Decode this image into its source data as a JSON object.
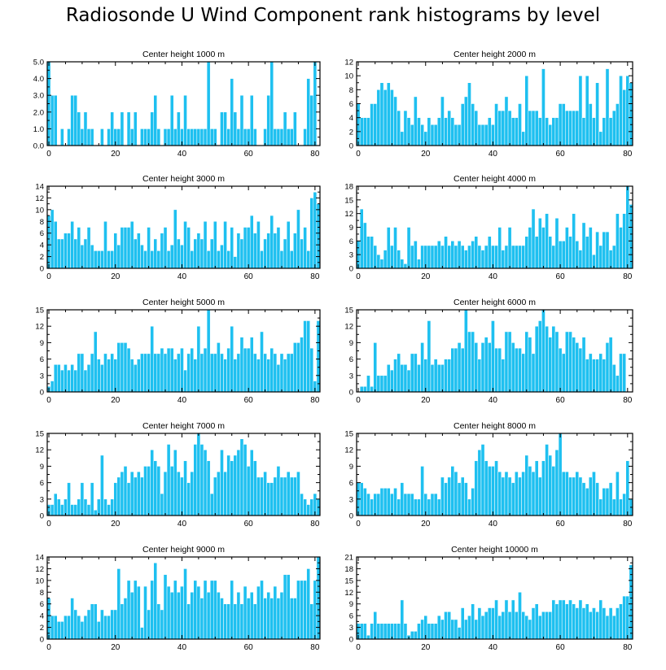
{
  "title": "Radiosonde U Wind Component rank histograms by level",
  "colors": {
    "bar": "#1ec0f0",
    "bar_edge": "#ffffff",
    "axis": "#000000"
  },
  "chart_data": [
    {
      "type": "bar",
      "title": "Center height 1000 m",
      "xlim": [
        -0.5,
        81.5
      ],
      "ylim": [
        0,
        5
      ],
      "xticks": [
        0,
        20,
        40,
        60,
        80
      ],
      "yticks": [
        0,
        1,
        2,
        3,
        4,
        5
      ],
      "ytick_labels": [
        "0.0",
        "1.0",
        "2.0",
        "3.0",
        "4.0",
        "5.0"
      ],
      "values": [
        5,
        3,
        3,
        0,
        1,
        0,
        1,
        3,
        3,
        2,
        1,
        2,
        1,
        1,
        0,
        0,
        1,
        0,
        1,
        2,
        1,
        1,
        2,
        0,
        2,
        1,
        2,
        0,
        1,
        1,
        1,
        2,
        3,
        1,
        0,
        1,
        1,
        3,
        1,
        2,
        1,
        3,
        1,
        1,
        1,
        1,
        1,
        1,
        5,
        1,
        1,
        0,
        2,
        2,
        1,
        4,
        2,
        1,
        3,
        1,
        1,
        3,
        1,
        0,
        0,
        1,
        3,
        5,
        1,
        1,
        1,
        2,
        1,
        1,
        2,
        0,
        0,
        1,
        4,
        3,
        5,
        0
      ]
    },
    {
      "type": "bar",
      "title": "Center height 2000 m",
      "xlim": [
        -0.5,
        81.5
      ],
      "ylim": [
        0,
        12
      ],
      "xticks": [
        0,
        20,
        40,
        60,
        80
      ],
      "yticks": [
        0,
        2,
        4,
        6,
        8,
        10,
        12
      ],
      "values": [
        6,
        4,
        4,
        4,
        6,
        6,
        8,
        9,
        8,
        9,
        8,
        7,
        5,
        2,
        5,
        4,
        3,
        7,
        4,
        3,
        2,
        4,
        3,
        3,
        4,
        7,
        4,
        5,
        4,
        3,
        3,
        6,
        7,
        9,
        6,
        5,
        3,
        3,
        3,
        4,
        3,
        6,
        5,
        5,
        7,
        5,
        4,
        4,
        6,
        2,
        10,
        5,
        5,
        5,
        4,
        11,
        4,
        3,
        4,
        4,
        6,
        6,
        5,
        5,
        5,
        5,
        10,
        4,
        10,
        6,
        4,
        9,
        2,
        4,
        11,
        4,
        5,
        6,
        10,
        8,
        10,
        9
      ]
    },
    {
      "type": "bar",
      "title": "Center height 3000 m",
      "xlim": [
        -0.5,
        81.5
      ],
      "ylim": [
        0,
        14
      ],
      "xticks": [
        0,
        20,
        40,
        60,
        80
      ],
      "yticks": [
        0,
        2,
        4,
        6,
        8,
        10,
        12,
        14
      ],
      "values": [
        9,
        10,
        8,
        5,
        5,
        6,
        6,
        8,
        5,
        7,
        4,
        5,
        7,
        4,
        3,
        3,
        3,
        8,
        3,
        3,
        6,
        4,
        7,
        7,
        7,
        8,
        5,
        6,
        4,
        3,
        7,
        3,
        5,
        3,
        6,
        7,
        3,
        4,
        10,
        5,
        4,
        8,
        7,
        3,
        5,
        6,
        5,
        8,
        3,
        5,
        8,
        3,
        4,
        8,
        3,
        7,
        2,
        6,
        5,
        7,
        7,
        9,
        6,
        8,
        3,
        5,
        6,
        9,
        6,
        7,
        3,
        5,
        8,
        3,
        6,
        10,
        5,
        7,
        3,
        12,
        13,
        11
      ]
    },
    {
      "type": "bar",
      "title": "Center height 4000 m",
      "xlim": [
        -0.5,
        81.5
      ],
      "ylim": [
        0,
        18
      ],
      "xticks": [
        0,
        20,
        40,
        60,
        80
      ],
      "yticks": [
        0,
        3,
        6,
        9,
        12,
        15,
        18
      ],
      "values": [
        6,
        13,
        10,
        7,
        7,
        5,
        3,
        2,
        4,
        9,
        5,
        9,
        4,
        2,
        1,
        9,
        5,
        6,
        2,
        5,
        5,
        5,
        5,
        5,
        6,
        5,
        7,
        5,
        6,
        5,
        6,
        5,
        4,
        5,
        6,
        7,
        5,
        4,
        5,
        7,
        5,
        5,
        9,
        4,
        5,
        9,
        5,
        5,
        5,
        5,
        7,
        9,
        13,
        7,
        11,
        9,
        12,
        7,
        5,
        11,
        6,
        6,
        9,
        7,
        12,
        6,
        4,
        10,
        7,
        9,
        3,
        8,
        5,
        8,
        8,
        4,
        5,
        12,
        9,
        12,
        18,
        14
      ]
    },
    {
      "type": "bar",
      "title": "Center height 5000 m",
      "xlim": [
        -0.5,
        81.5
      ],
      "ylim": [
        0,
        15
      ],
      "xticks": [
        0,
        20,
        40,
        60,
        80
      ],
      "yticks": [
        0,
        3,
        6,
        9,
        12,
        15
      ],
      "values": [
        1,
        2,
        5,
        5,
        4,
        5,
        4,
        5,
        4,
        7,
        7,
        4,
        5,
        7,
        11,
        6,
        5,
        7,
        6,
        7,
        6,
        9,
        9,
        9,
        8,
        6,
        5,
        6,
        7,
        7,
        7,
        12,
        7,
        7,
        8,
        7,
        8,
        8,
        6,
        7,
        8,
        4,
        7,
        8,
        6,
        12,
        7,
        8,
        15,
        7,
        7,
        9,
        7,
        6,
        8,
        12,
        6,
        7,
        10,
        8,
        8,
        10,
        7,
        6,
        11,
        7,
        6,
        8,
        7,
        5,
        7,
        6,
        7,
        7,
        9,
        9,
        10,
        13,
        13,
        8,
        2,
        13
      ]
    },
    {
      "type": "bar",
      "title": "Center height 6000 m",
      "xlim": [
        -0.5,
        81.5
      ],
      "ylim": [
        0,
        15
      ],
      "xticks": [
        0,
        20,
        40,
        60,
        80
      ],
      "yticks": [
        0,
        3,
        6,
        9,
        12,
        15
      ],
      "values": [
        0,
        1,
        1,
        3,
        1,
        9,
        3,
        3,
        3,
        5,
        4,
        6,
        7,
        5,
        5,
        4,
        7,
        7,
        5,
        9,
        6,
        13,
        5,
        6,
        5,
        5,
        6,
        6,
        8,
        8,
        9,
        8,
        15,
        11,
        11,
        9,
        6,
        9,
        10,
        9,
        13,
        8,
        8,
        6,
        11,
        11,
        9,
        8,
        8,
        7,
        11,
        10,
        7,
        12,
        13,
        15,
        12,
        10,
        12,
        11,
        8,
        7,
        11,
        11,
        10,
        9,
        8,
        10,
        6,
        7,
        6,
        6,
        7,
        6,
        9,
        10,
        5,
        3,
        7,
        7,
        0,
        0
      ]
    },
    {
      "type": "bar",
      "title": "Center height 7000 m",
      "xlim": [
        -0.5,
        81.5
      ],
      "ylim": [
        0,
        15
      ],
      "xticks": [
        0,
        20,
        40,
        60,
        80
      ],
      "yticks": [
        0,
        3,
        6,
        9,
        12,
        15
      ],
      "values": [
        2,
        2,
        4,
        3,
        2,
        3,
        6,
        2,
        2,
        3,
        6,
        3,
        2,
        6,
        1,
        3,
        11,
        3,
        2,
        3,
        6,
        7,
        8,
        9,
        6,
        8,
        7,
        8,
        7,
        9,
        9,
        12,
        10,
        9,
        4,
        8,
        13,
        9,
        12,
        8,
        7,
        10,
        6,
        8,
        13,
        15,
        13,
        12,
        10,
        4,
        7,
        8,
        12,
        8,
        11,
        10,
        11,
        12,
        14,
        13,
        9,
        12,
        10,
        7,
        7,
        8,
        6,
        6,
        7,
        9,
        7,
        7,
        8,
        7,
        7,
        8,
        4,
        3,
        2,
        3,
        4,
        3
      ]
    },
    {
      "type": "bar",
      "title": "Center height 8000 m",
      "xlim": [
        -0.5,
        81.5
      ],
      "ylim": [
        0,
        15
      ],
      "xticks": [
        0,
        20,
        40,
        60,
        80
      ],
      "yticks": [
        0,
        3,
        6,
        9,
        12,
        15
      ],
      "values": [
        6,
        6,
        5,
        4,
        3,
        4,
        4,
        5,
        5,
        5,
        4,
        5,
        3,
        6,
        4,
        4,
        4,
        3,
        3,
        9,
        4,
        3,
        4,
        4,
        3,
        7,
        6,
        7,
        9,
        8,
        6,
        7,
        6,
        3,
        5,
        10,
        12,
        13,
        10,
        9,
        9,
        10,
        8,
        7,
        8,
        7,
        6,
        8,
        7,
        8,
        11,
        9,
        8,
        10,
        7,
        10,
        13,
        11,
        9,
        12,
        15,
        8,
        8,
        7,
        7,
        8,
        7,
        6,
        5,
        7,
        8,
        6,
        3,
        5,
        5,
        6,
        3,
        8,
        3,
        4,
        10,
        3
      ]
    },
    {
      "type": "bar",
      "title": "Center height 9000 m",
      "xlim": [
        -0.5,
        81.5
      ],
      "ylim": [
        0,
        14
      ],
      "xticks": [
        0,
        20,
        40,
        60,
        80
      ],
      "yticks": [
        0,
        2,
        4,
        6,
        8,
        10,
        12,
        14
      ],
      "values": [
        7,
        4,
        4,
        3,
        3,
        4,
        4,
        7,
        5,
        4,
        3,
        4,
        5,
        6,
        6,
        3,
        5,
        4,
        4,
        5,
        5,
        12,
        6,
        7,
        10,
        8,
        10,
        9,
        2,
        9,
        5,
        10,
        13,
        6,
        5,
        11,
        9,
        8,
        10,
        8,
        9,
        12,
        6,
        8,
        10,
        9,
        7,
        10,
        8,
        10,
        10,
        8,
        7,
        6,
        6,
        10,
        6,
        8,
        6,
        9,
        7,
        8,
        6,
        9,
        10,
        7,
        8,
        7,
        9,
        7,
        8,
        11,
        11,
        7,
        7,
        10,
        10,
        10,
        12,
        6,
        10,
        14
      ]
    },
    {
      "type": "bar",
      "title": "Center height 10000 m",
      "xlim": [
        -0.5,
        81.5
      ],
      "ylim": [
        0,
        21
      ],
      "xticks": [
        0,
        20,
        40,
        60,
        80
      ],
      "yticks": [
        0,
        3,
        6,
        9,
        12,
        15,
        18,
        21
      ],
      "values": [
        4,
        4,
        4,
        1,
        4,
        7,
        4,
        4,
        4,
        4,
        4,
        4,
        4,
        10,
        4,
        1,
        2,
        2,
        4,
        5,
        6,
        4,
        4,
        4,
        6,
        5,
        7,
        7,
        5,
        5,
        3,
        8,
        5,
        6,
        9,
        5,
        8,
        6,
        7,
        8,
        8,
        10,
        6,
        7,
        10,
        7,
        10,
        7,
        12,
        7,
        6,
        5,
        8,
        9,
        6,
        7,
        7,
        7,
        10,
        9,
        10,
        10,
        9,
        10,
        9,
        8,
        10,
        8,
        9,
        7,
        8,
        7,
        10,
        8,
        6,
        8,
        6,
        8,
        9,
        11,
        11,
        19
      ]
    }
  ]
}
